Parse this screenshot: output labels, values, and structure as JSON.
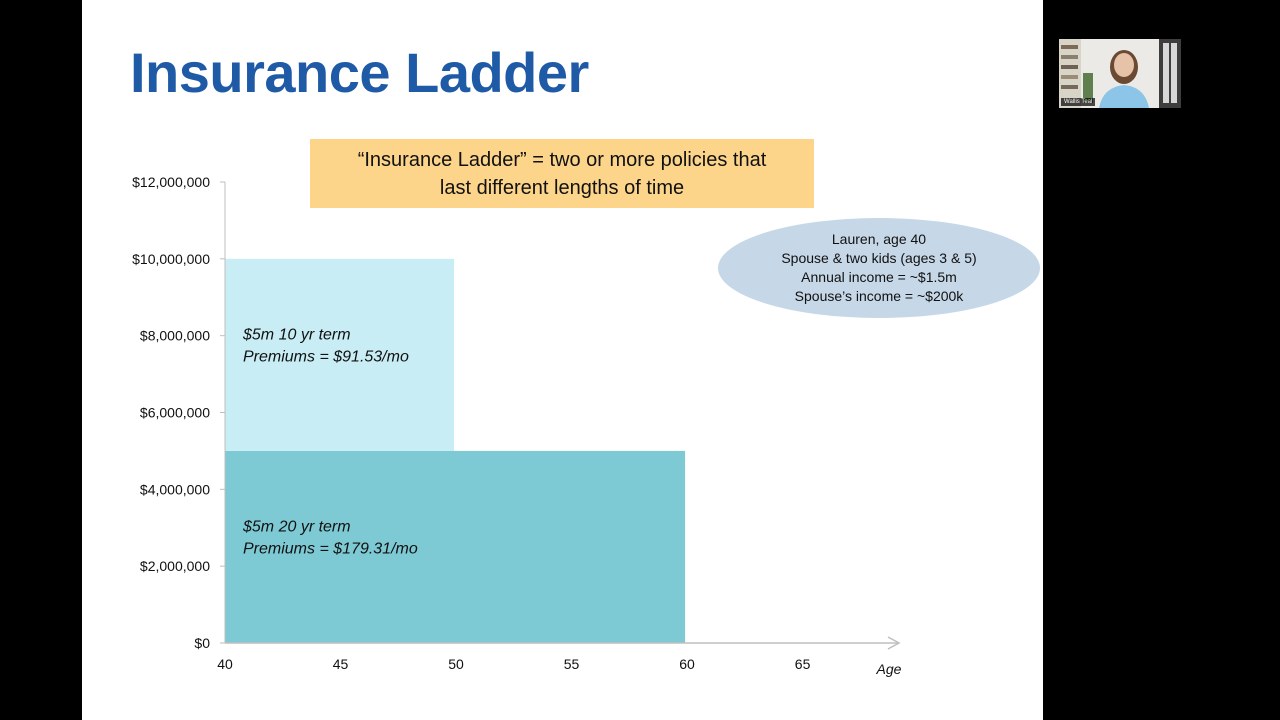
{
  "slide": {
    "title": "Insurance Ladder",
    "callout_line1": "“Insurance Ladder” = two or more policies that",
    "callout_line2": "last different lengths of time",
    "profile": {
      "line1": "Lauren, age 40",
      "line2": "Spouse & two kids (ages 3 & 5)",
      "line3": "Annual income = ~$1.5m",
      "line4": "Spouse’s income = ~$200k"
    }
  },
  "chart_data": {
    "type": "bar",
    "title": "",
    "xlabel": "Age",
    "ylabel": "",
    "xlim": [
      40,
      69
    ],
    "ylim": [
      0,
      12000000
    ],
    "x_ticks": [
      40,
      45,
      50,
      55,
      60,
      65
    ],
    "y_ticks": [
      0,
      2000000,
      4000000,
      6000000,
      8000000,
      10000000,
      12000000
    ],
    "y_tick_labels": [
      "$0",
      "$2,000,000",
      "$4,000,000",
      "$6,000,000",
      "$8,000,000",
      "$10,000,000",
      "$12,000,000"
    ],
    "series": [
      {
        "name": "$5m 20 yr term",
        "start_age": 40,
        "end_age": 60,
        "y_from": 0,
        "y_to": 5000000,
        "color": "#7ecad4",
        "label_line1": "$5m 20 yr term",
        "label_line2": "Premiums = $179.31/mo"
      },
      {
        "name": "$5m 10 yr term",
        "start_age": 40,
        "end_age": 50,
        "y_from": 5000000,
        "y_to": 10000000,
        "color": "#c8edf5",
        "label_line1": "$5m 10 yr term",
        "label_line2": "Premiums = $91.53/mo"
      }
    ]
  },
  "webcam": {
    "name": "Wallis Teal"
  }
}
